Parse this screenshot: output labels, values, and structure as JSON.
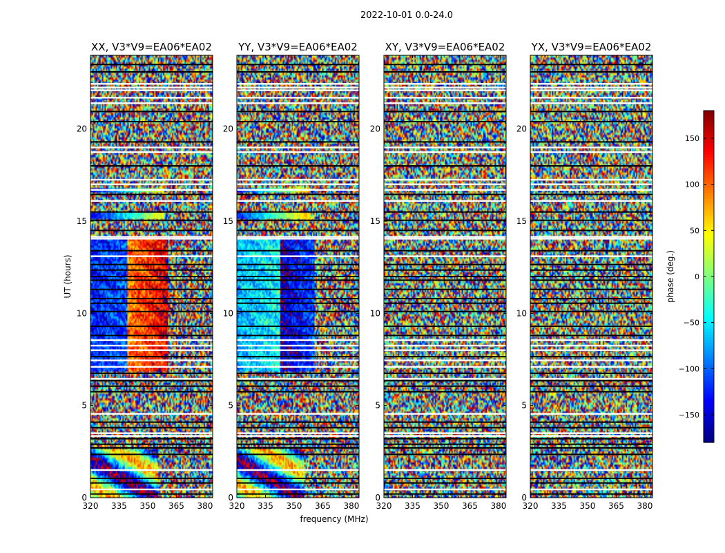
{
  "chart_data": {
    "type": "heatmap",
    "suptitle": "2022-10-01 0.0-24.0",
    "panels": [
      {
        "title": "XX, V3*V9=EA06*EA02",
        "pattern": "xx"
      },
      {
        "title": "YY, V3*V9=EA06*EA02",
        "pattern": "yy"
      },
      {
        "title": "XY, V3*V9=EA06*EA02",
        "pattern": "noise"
      },
      {
        "title": "YX, V3*V9=EA06*EA02",
        "pattern": "noise"
      }
    ],
    "xlabel": "frequency (MHz)",
    "ylabel": "UT (hours)",
    "xlim": [
      320,
      384
    ],
    "ylim": [
      0,
      24
    ],
    "xticks": [
      320,
      335,
      350,
      365,
      380
    ],
    "yticks": [
      0,
      5,
      10,
      15,
      20
    ],
    "colorbar": {
      "label": "phase (deg.)",
      "range": [
        -180,
        180
      ],
      "ticks": [
        150,
        100,
        50,
        0,
        -50,
        -100,
        -150
      ],
      "tick_labels": [
        "150",
        "100",
        "50",
        "0",
        "−50",
        "−100",
        "−150"
      ],
      "colormap": "jet"
    },
    "flagged_rows_white_ut": [
      0.45,
      1.5,
      3.35,
      3.5,
      4.55,
      6.45,
      7.1,
      7.45,
      8.0,
      8.25,
      8.55,
      13.1,
      14.05,
      14.15,
      16.1,
      16.7,
      17.0,
      17.25,
      18.75,
      19.0,
      21.4,
      21.7,
      22.1,
      22.25,
      22.45
    ],
    "flagged_rows_black_ut": [
      0.2,
      0.8,
      1.05,
      2.35,
      2.7,
      2.9,
      3.2,
      3.8,
      4.1,
      5.75,
      6.05,
      6.35,
      6.75,
      7.65,
      8.8,
      9.3,
      10.1,
      10.55,
      10.8,
      11.3,
      11.8,
      12.0,
      12.35,
      12.65,
      13.4,
      14.5,
      15.05,
      15.5,
      16.45,
      18.0,
      19.3,
      20.4,
      20.95,
      23.1,
      23.5
    ]
  }
}
